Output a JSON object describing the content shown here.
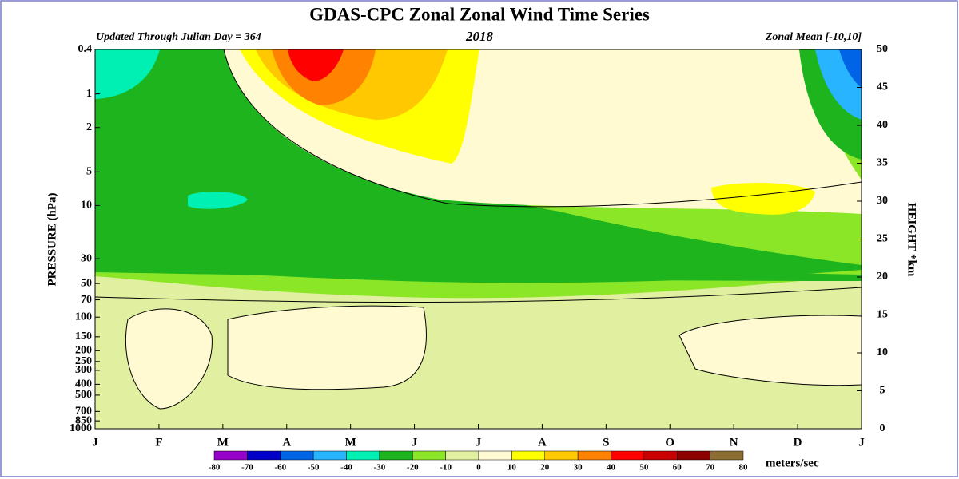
{
  "chart_data": {
    "type": "contour",
    "title": "GDAS-CPC Zonal Zonal Wind Time Series",
    "left_note": "Updated Through Julian Day = 364",
    "subtitle": "2018",
    "right_note": "Zonal Mean [-10,10]",
    "y_label": "PRESSURE (hPa)",
    "y2_label": "HEIGHT *km",
    "categories": [
      "J",
      "F",
      "M",
      "A",
      "M",
      "J",
      "J",
      "A",
      "S",
      "O",
      "N",
      "D",
      "J"
    ],
    "ylog": true,
    "ylim": [
      1000,
      0.4
    ],
    "yticks": [
      0.4,
      1,
      2,
      5,
      10,
      30,
      50,
      70,
      100,
      150,
      200,
      250,
      300,
      400,
      500,
      700,
      850,
      1000
    ],
    "y2lim": [
      0,
      50
    ],
    "y2ticks": [
      0,
      5,
      10,
      15,
      20,
      25,
      30,
      35,
      40,
      45,
      50
    ],
    "colorbar": {
      "label": "meters/sec",
      "ticks": [
        -80,
        -70,
        -60,
        -50,
        -40,
        -30,
        -20,
        -10,
        0,
        10,
        20,
        30,
        40,
        50,
        60,
        70,
        80
      ],
      "colors": [
        "#9600c8",
        "#0000c8",
        "#0064e6",
        "#28b4ff",
        "#00f0b4",
        "#1eb41e",
        "#8ce628",
        "#e1f0a0",
        "#fffad2",
        "#ffff00",
        "#ffc800",
        "#ff8200",
        "#ff0000",
        "#c80000",
        "#8c0000",
        "#8c6e32"
      ]
    }
  }
}
